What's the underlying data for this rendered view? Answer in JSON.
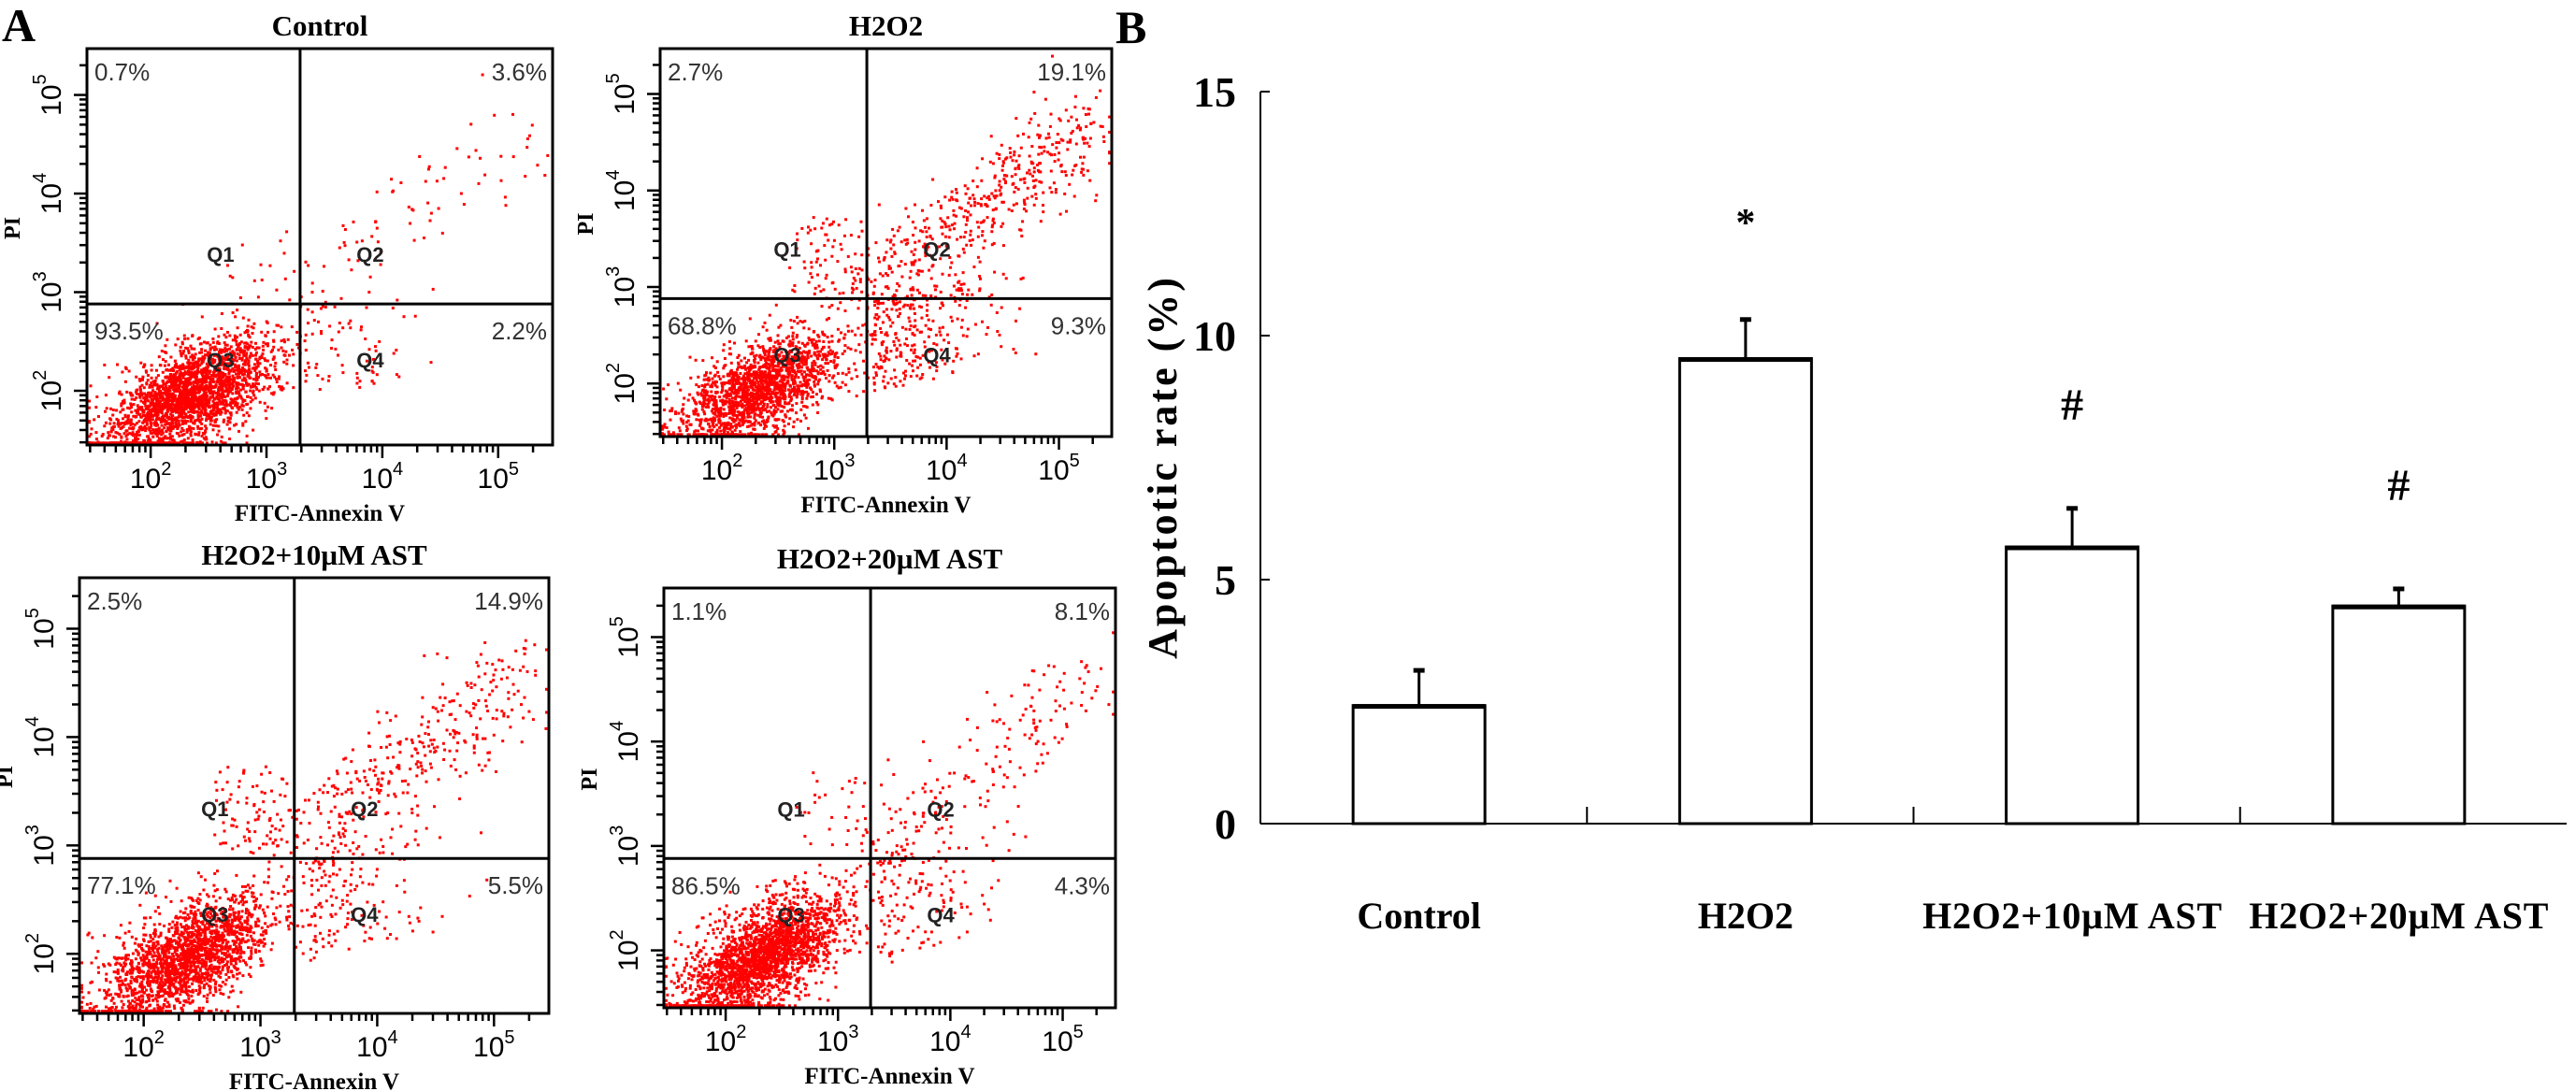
{
  "panel_labels": {
    "a": "A",
    "b": "B"
  },
  "colors": {
    "events": "#ff0000",
    "axes": "#000000",
    "bars": "#ffffff"
  },
  "chart_data": [
    {
      "type": "scatter",
      "title": "Control",
      "xlabel": "FITC-Annexin V",
      "ylabel": "PI",
      "x_scale": "log",
      "y_scale": "log",
      "xlim": [
        30,
        300000
      ],
      "ylim": [
        30,
        260000
      ],
      "tick_base": "10",
      "ticks": [
        "2",
        "3",
        "4",
        "5"
      ],
      "quadrants": [
        {
          "label": "Q1",
          "percent": "0.7%"
        },
        {
          "label": "Q2",
          "percent": "3.6%"
        },
        {
          "label": "Q3",
          "percent": "93.5%"
        },
        {
          "label": "Q4",
          "percent": "2.2%"
        }
      ]
    },
    {
      "type": "scatter",
      "title": "H2O2",
      "xlabel": "FITC-Annexin V",
      "ylabel": "PI",
      "x_scale": "log",
      "y_scale": "log",
      "xlim": [
        30,
        300000
      ],
      "ylim": [
        30,
        260000
      ],
      "tick_base": "10",
      "ticks": [
        "2",
        "3",
        "4",
        "5"
      ],
      "quadrants": [
        {
          "label": "Q1",
          "percent": "2.7%"
        },
        {
          "label": "Q2",
          "percent": "19.1%"
        },
        {
          "label": "Q3",
          "percent": "68.8%"
        },
        {
          "label": "Q4",
          "percent": "9.3%"
        }
      ]
    },
    {
      "type": "scatter",
      "title": "H2O2+10µM AST",
      "xlabel": "FITC-Annexin V",
      "ylabel": "PI",
      "x_scale": "log",
      "y_scale": "log",
      "xlim": [
        30,
        300000
      ],
      "ylim": [
        30,
        260000
      ],
      "tick_base": "10",
      "ticks": [
        "2",
        "3",
        "4",
        "5"
      ],
      "quadrants": [
        {
          "label": "Q1",
          "percent": "2.5%"
        },
        {
          "label": "Q2",
          "percent": "14.9%"
        },
        {
          "label": "Q3",
          "percent": "77.1%"
        },
        {
          "label": "Q4",
          "percent": "5.5%"
        }
      ]
    },
    {
      "type": "scatter",
      "title": "H2O2+20µM AST",
      "xlabel": "FITC-Annexin V",
      "ylabel": "PI",
      "x_scale": "log",
      "y_scale": "log",
      "xlim": [
        30,
        300000
      ],
      "ylim": [
        30,
        260000
      ],
      "tick_base": "10",
      "ticks": [
        "2",
        "3",
        "4",
        "5"
      ],
      "quadrants": [
        {
          "label": "Q1",
          "percent": "1.1%"
        },
        {
          "label": "Q2",
          "percent": "8.1%"
        },
        {
          "label": "Q3",
          "percent": "86.5%"
        },
        {
          "label": "Q4",
          "percent": "4.3%"
        }
      ]
    },
    {
      "type": "bar",
      "categories": [
        "Control",
        "H2O2",
        "H2O2+10µM AST",
        "H2O2+20µM AST"
      ],
      "values": [
        2.42,
        9.53,
        5.67,
        4.46
      ],
      "errors": [
        0.72,
        0.8,
        0.79,
        0.35
      ],
      "annotations": [
        "",
        "*",
        "#",
        "#"
      ],
      "xlabel": "",
      "ylabel": "Apoptotic rate (%)",
      "ylim": [
        0,
        15
      ],
      "yticks": [
        "0",
        "5",
        "10",
        "15"
      ],
      "grid": false
    }
  ]
}
